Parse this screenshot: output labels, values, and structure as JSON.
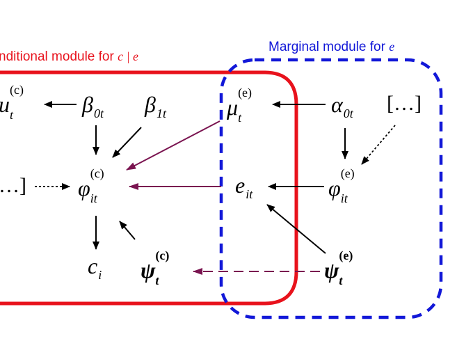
{
  "modules": {
    "conditional": {
      "title_text": "nditional module for ",
      "title_vars": "c | e",
      "color": "#e8121c"
    },
    "marginal": {
      "title_text": "Marginal module for ",
      "title_vars": "e",
      "color": "#1218d8"
    }
  },
  "nodes": {
    "mu_c": {
      "base": "u",
      "sub": "t",
      "sup": "(c)"
    },
    "beta0": {
      "base": "β",
      "sub": "0t"
    },
    "beta1": {
      "base": "β",
      "sub": "1t"
    },
    "mu_e": {
      "base": "μ",
      "sub": "t",
      "sup": "(e)"
    },
    "alpha0": {
      "base": "α",
      "sub": "0t"
    },
    "dots_right": {
      "text": "[…]"
    },
    "dots_left": {
      "text": "…]"
    },
    "phi_c": {
      "base": "φ",
      "sub": "it",
      "sup": "(c)"
    },
    "e_it": {
      "base": "e",
      "sub": "it"
    },
    "phi_e": {
      "base": "φ",
      "sub": "it",
      "sup": "(e)"
    },
    "c_i": {
      "base": "c",
      "sub": "i"
    },
    "psi_c": {
      "base": "ψ",
      "sub": "t",
      "sup": "(c)"
    },
    "psi_e": {
      "base": "ψ",
      "sub": "t",
      "sup": "(e)"
    }
  },
  "colors": {
    "arrow_black": "#000000",
    "arrow_purple": "#7a1450"
  }
}
